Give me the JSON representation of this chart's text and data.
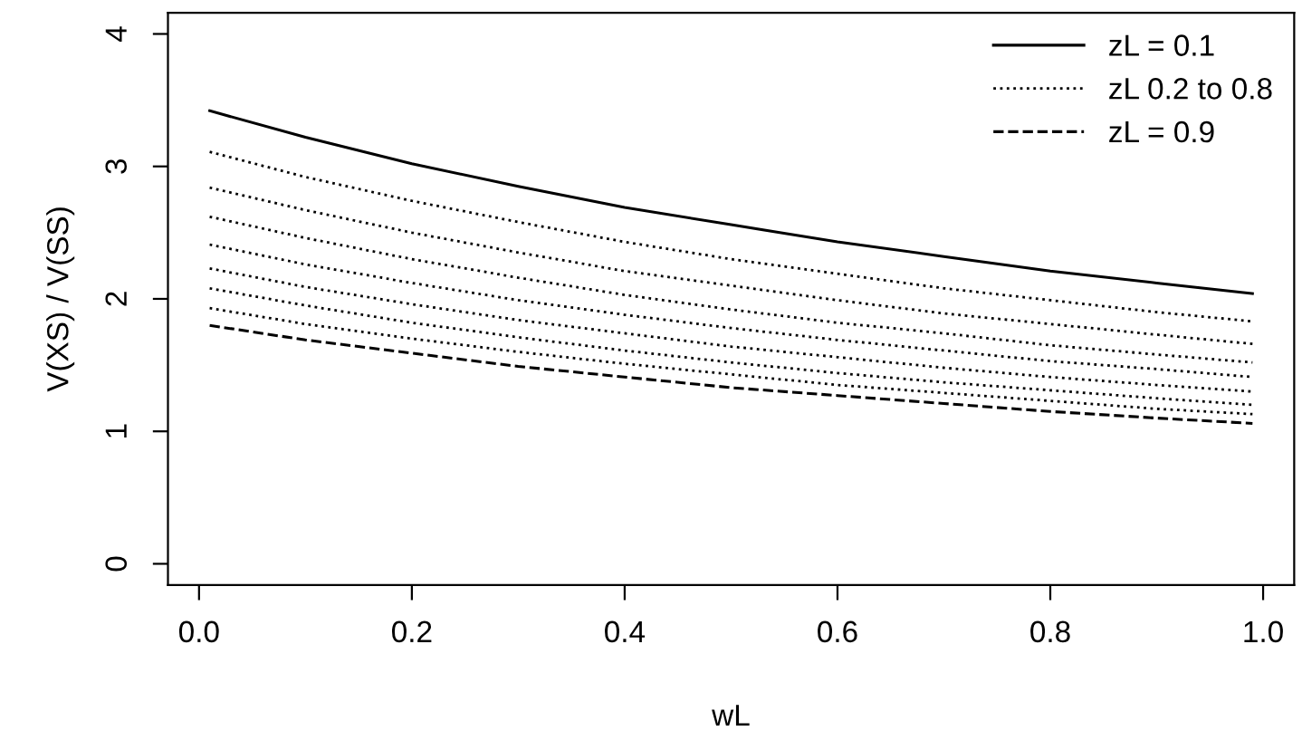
{
  "chart_data": {
    "type": "line",
    "xlabel": "wL",
    "ylabel": "V(XS) / V(SS)",
    "x": [
      0.01,
      0.1,
      0.2,
      0.3,
      0.4,
      0.5,
      0.6,
      0.7,
      0.8,
      0.9,
      0.99
    ],
    "series": [
      {
        "name": "zL = 0.1",
        "color": "#000000",
        "line_style": "solid",
        "values": [
          3.42,
          3.22,
          3.02,
          2.85,
          2.69,
          2.56,
          2.43,
          2.32,
          2.21,
          2.12,
          2.04
        ]
      },
      {
        "name": "zL 0.2 to 0.8",
        "color": "#000000",
        "line_style": "dotted",
        "values": [
          3.11,
          2.92,
          2.74,
          2.58,
          2.43,
          2.3,
          2.19,
          2.08,
          1.99,
          1.9,
          1.83
        ]
      },
      {
        "color": "#000000",
        "line_style": "dotted",
        "values": [
          2.84,
          2.67,
          2.5,
          2.35,
          2.21,
          2.1,
          1.99,
          1.89,
          1.81,
          1.73,
          1.66
        ]
      },
      {
        "color": "#000000",
        "line_style": "dotted",
        "values": [
          2.62,
          2.46,
          2.3,
          2.16,
          2.03,
          1.92,
          1.82,
          1.74,
          1.65,
          1.58,
          1.52
        ]
      },
      {
        "color": "#000000",
        "line_style": "dotted",
        "values": [
          2.41,
          2.26,
          2.12,
          1.99,
          1.88,
          1.78,
          1.69,
          1.61,
          1.53,
          1.47,
          1.41
        ]
      },
      {
        "color": "#000000",
        "line_style": "dotted",
        "values": [
          2.23,
          2.09,
          1.96,
          1.84,
          1.74,
          1.64,
          1.56,
          1.48,
          1.41,
          1.35,
          1.3
        ]
      },
      {
        "color": "#000000",
        "line_style": "dotted",
        "values": [
          2.08,
          1.95,
          1.82,
          1.71,
          1.61,
          1.52,
          1.44,
          1.37,
          1.31,
          1.25,
          1.2
        ]
      },
      {
        "color": "#000000",
        "line_style": "dotted",
        "values": [
          1.93,
          1.81,
          1.7,
          1.6,
          1.51,
          1.43,
          1.35,
          1.29,
          1.23,
          1.17,
          1.13
        ]
      },
      {
        "name": "zL = 0.9",
        "color": "#000000",
        "line_style": "dashed",
        "values": [
          1.8,
          1.69,
          1.59,
          1.49,
          1.41,
          1.33,
          1.27,
          1.21,
          1.15,
          1.1,
          1.06
        ]
      }
    ],
    "xlim": [
      -0.0292,
      1.0292
    ],
    "ylim": [
      -0.16,
      4.16
    ],
    "xticks": [
      {
        "value": 0,
        "label": "0.0"
      },
      0.2,
      0.4,
      0.6,
      0.8,
      {
        "value": 1,
        "label": "1.0"
      }
    ],
    "yticks": [
      0,
      1,
      2,
      3,
      4
    ],
    "grid": false,
    "legend": "top right",
    "marker": "none"
  }
}
